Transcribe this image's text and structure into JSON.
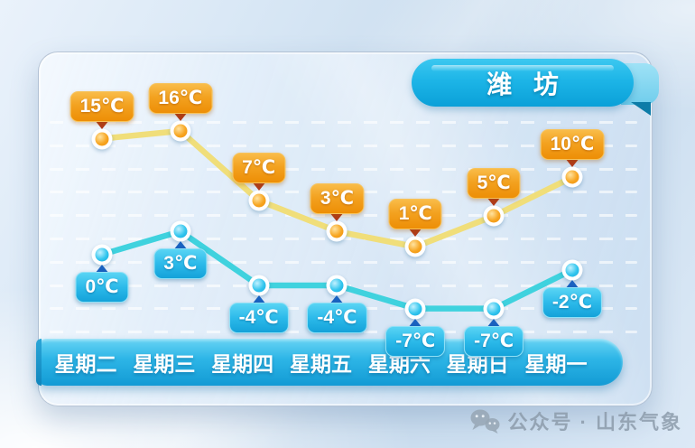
{
  "header": {
    "city": "潍 坊"
  },
  "chart_data": {
    "type": "line",
    "title": "潍 坊",
    "categories": [
      "星期二",
      "星期三",
      "星期四",
      "星期五",
      "星期六",
      "星期日",
      "星期一"
    ],
    "unit": "℃",
    "series": [
      {
        "name": "high",
        "values": [
          15,
          16,
          7,
          3,
          1,
          5,
          10
        ],
        "labels": [
          "15℃",
          "16℃",
          "7℃",
          "3℃",
          "1℃",
          "5℃",
          "10℃"
        ],
        "line_color": "#f0de7a",
        "point_color": "#f49a18",
        "badge_color": "#ee9008",
        "arrow_color": "#b03a1b",
        "badge_position": "above"
      },
      {
        "name": "low",
        "values": [
          0,
          3,
          -4,
          -4,
          -7,
          -7,
          -2
        ],
        "labels": [
          "0℃",
          "3℃",
          "-4℃",
          "-4℃",
          "-7℃",
          "-7℃",
          "-2℃"
        ],
        "line_color": "#3fd2de",
        "point_color": "#2cc4ec",
        "badge_color": "#17a3d9",
        "arrow_color": "#1a62c0",
        "badge_position": "below"
      }
    ],
    "ylim": [
      -9,
      18
    ],
    "grid": "dashed-horizontal",
    "legend": "none"
  },
  "footer": {
    "source": "公众号 · 山东气象"
  },
  "theme": {
    "ribbon_color": "#18b0e4",
    "bar_color": "#1d9fd6",
    "panel_tint": "#dce9f6"
  }
}
